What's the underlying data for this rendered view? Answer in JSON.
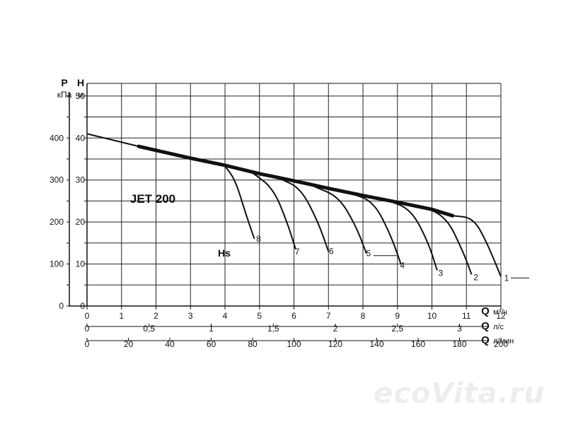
{
  "chart_data": {
    "type": "line",
    "title": "JET 200",
    "hs_label": "Hs",
    "y_left": {
      "symbol": "P",
      "unit": "кПа",
      "ticks": [
        0,
        100,
        200,
        300,
        400
      ],
      "range": [
        0,
        530
      ]
    },
    "y_right": {
      "symbol": "H",
      "unit": "м",
      "ticks": [
        0,
        10,
        20,
        30,
        40,
        50
      ],
      "range": [
        0,
        53
      ]
    },
    "x_axes": [
      {
        "symbol": "Q",
        "unit": "м³/ч",
        "ticks": [
          "0",
          "1",
          "2",
          "3",
          "4",
          "5",
          "6",
          "7",
          "8",
          "9",
          "10",
          "11",
          "12"
        ],
        "range": [
          0,
          12
        ]
      },
      {
        "symbol": "Q",
        "unit": "л/с",
        "ticks": [
          "0",
          "0,5",
          "1",
          "1,5",
          "2",
          "2,5",
          "3"
        ]
      },
      {
        "symbol": "Q",
        "unit": "л/мин",
        "ticks": [
          "0",
          "20",
          "40",
          "60",
          "80",
          "100",
          "120",
          "140",
          "160",
          "180",
          "200"
        ]
      }
    ],
    "main_curve": {
      "x": [
        0,
        1.5,
        3,
        4,
        5,
        6,
        7,
        8,
        9,
        10,
        10.6
      ],
      "y": [
        41,
        38,
        35.2,
        33.5,
        31.5,
        29.8,
        28,
        26.3,
        24.7,
        23,
        21.5
      ]
    },
    "series": [
      {
        "name": "8",
        "x": [
          4.0,
          4.3,
          4.6,
          4.85
        ],
        "y": [
          33.3,
          30,
          22,
          16
        ]
      },
      {
        "name": "7",
        "x": [
          4.8,
          5.4,
          5.8,
          6.05
        ],
        "y": [
          31.7,
          28,
          20,
          13.5
        ]
      },
      {
        "name": "6",
        "x": [
          5.6,
          6.2,
          6.7,
          7.0
        ],
        "y": [
          30.3,
          28,
          20,
          13
        ]
      },
      {
        "name": "5",
        "x": [
          6.6,
          7.3,
          7.8,
          8.1
        ],
        "y": [
          28.4,
          26,
          19,
          12.5
        ]
      },
      {
        "name": "4",
        "x": [
          7.6,
          8.3,
          8.8,
          9.1
        ],
        "y": [
          26.9,
          25,
          17,
          10
        ]
      },
      {
        "name": "3",
        "x": [
          8.7,
          9.4,
          9.9,
          10.15
        ],
        "y": [
          25.2,
          23,
          15,
          8.5
        ]
      },
      {
        "name": "2",
        "x": [
          9.6,
          10.4,
          10.9,
          11.15
        ],
        "y": [
          23.9,
          21.5,
          13,
          7.5
        ]
      },
      {
        "name": "1",
        "x": [
          10.6,
          11.2,
          11.6,
          12.0
        ],
        "y": [
          21.5,
          21,
          15,
          7
        ]
      }
    ]
  },
  "watermark": "ecoVita.ru"
}
